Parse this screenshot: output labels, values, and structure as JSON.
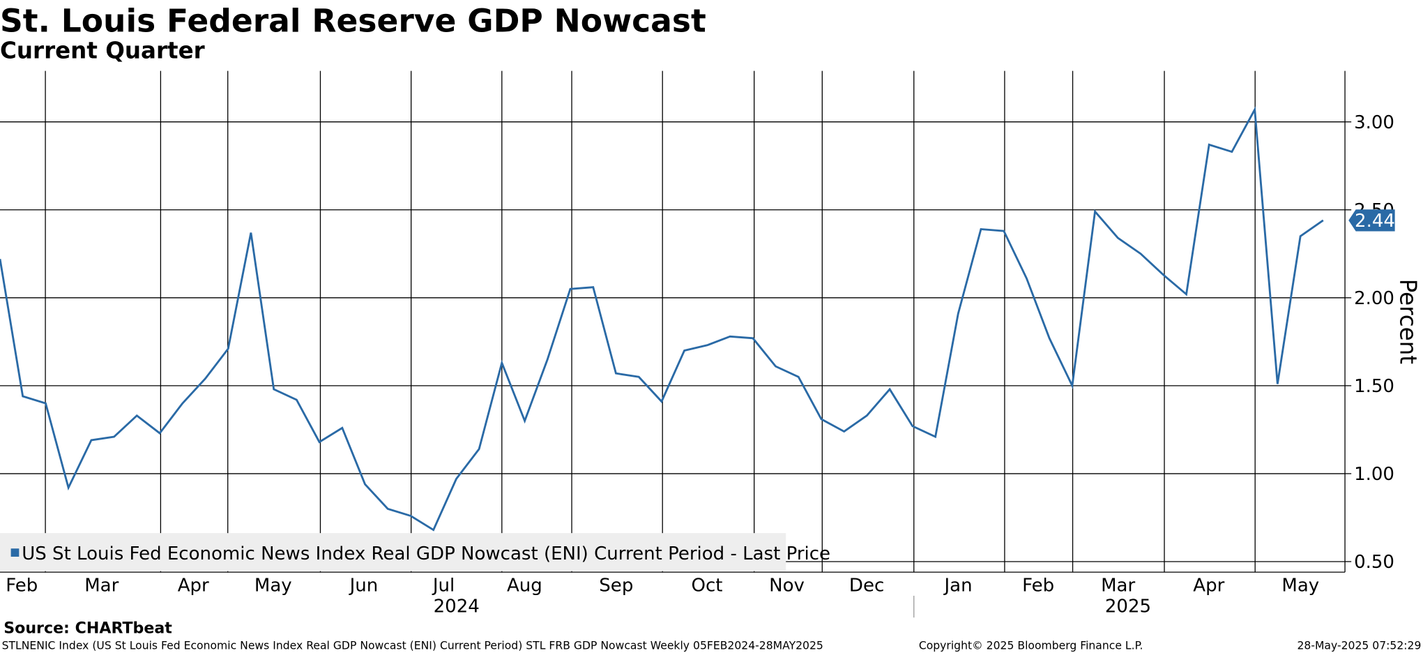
{
  "chart_data": {
    "type": "line",
    "title": "St. Louis Federal Reserve GDP Nowcast",
    "subtitle": "Current Quarter",
    "y_axis_label": "Percent",
    "months": [
      "Feb",
      "Mar",
      "Apr",
      "May",
      "Jun",
      "Jul",
      "Aug",
      "Sep",
      "Oct",
      "Nov",
      "Dec",
      "Jan",
      "Feb",
      "Mar",
      "Apr",
      "May"
    ],
    "years": [
      "2024",
      "2025"
    ],
    "series": [
      {
        "name": "US St Louis Fed Economic News Index Real GDP Nowcast (ENI) Current Period - Last Price",
        "color": "#2a6aa6",
        "values": [
          2.22,
          1.44,
          1.4,
          0.92,
          1.19,
          1.21,
          1.33,
          1.23,
          1.4,
          1.54,
          1.71,
          2.37,
          1.48,
          1.42,
          1.18,
          1.26,
          0.94,
          0.8,
          0.76,
          0.68,
          0.97,
          1.14,
          1.63,
          1.3,
          1.65,
          2.05,
          2.06,
          1.57,
          1.55,
          1.41,
          1.7,
          1.73,
          1.78,
          1.77,
          1.61,
          1.55,
          1.31,
          1.24,
          1.33,
          1.48,
          1.27,
          1.21,
          1.91,
          2.39,
          2.38,
          2.11,
          1.77,
          1.5,
          2.49,
          2.34,
          2.25,
          2.13,
          2.02,
          2.87,
          2.83,
          3.07,
          1.51,
          2.35,
          2.44
        ]
      }
    ],
    "last_value": 2.44,
    "last_value_label": "2.44",
    "ylim": [
      0.44,
      3.29
    ],
    "yticks": [
      {
        "value": 0.5,
        "label": "0.50"
      },
      {
        "value": 1,
        "label": "1.00"
      },
      {
        "value": 1.5,
        "label": "1.50"
      },
      {
        "value": 2,
        "label": "2.00"
      },
      {
        "value": 2.5,
        "label": "2.50"
      },
      {
        "value": 3,
        "label": "3.00"
      }
    ],
    "grid": true,
    "legend": "bottom-left",
    "source": "Source: CHARTbeat",
    "footer_left": "STLNENIC Index (US St Louis Fed Economic News Index Real GDP Nowcast (ENI) Current Period) STL FRB GDP Nowcast  Weekly 05FEB2024-28MAY2025",
    "footer_center": "Copyright© 2025 Bloomberg Finance L.P.",
    "footer_right": "28-May-2025 07:52:29"
  }
}
